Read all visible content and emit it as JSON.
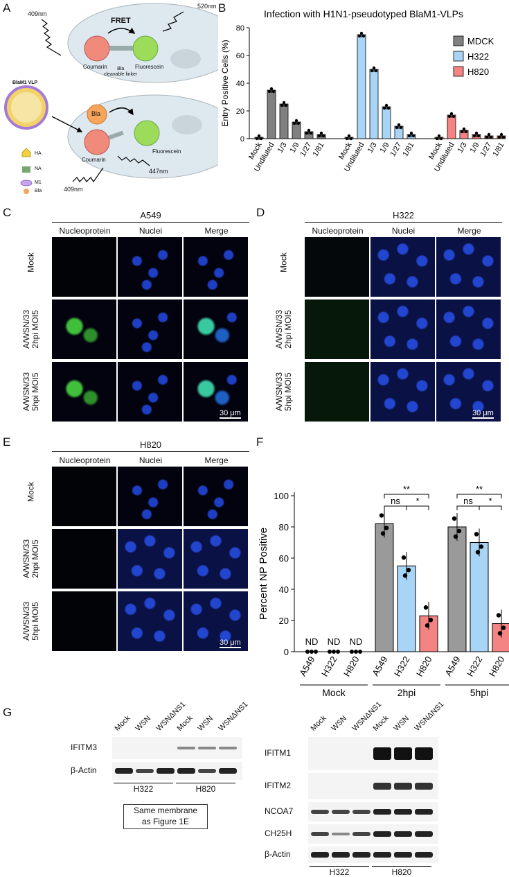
{
  "panel_labels": {
    "a": "A",
    "b": "B",
    "c": "C",
    "d": "D",
    "e": "E",
    "f": "F",
    "g": "G"
  },
  "panelA": {
    "wl_409_top": "409nm",
    "wl_520": "520nm",
    "fret": "FRET",
    "coumarin": "Coumarin",
    "fluorescein": "Fluorescein",
    "linker": "Bla\ncleavable linker",
    "vlp": "BlaM1 VLP",
    "ha": "HA",
    "na": "NA",
    "m1": "M1",
    "bla": "Bla",
    "bla_enzyme": "Bla",
    "coumarin2": "Coumarin",
    "fluorescein2": "Fluorescein",
    "wl_409_bottom": "409nm",
    "wl_447": "447nm",
    "colors": {
      "coumarin": "#f08a7a",
      "fluorescein": "#9ddc5a",
      "cell": "#dde8ef",
      "bla": "#f6a55a"
    }
  },
  "chartB": {
    "title": "Infection with H1N1-pseudotyped BlaM1-VLPs",
    "ylabel": "Entry Positive Cells (%)",
    "legend": [
      {
        "name": "MDCK",
        "color": "#808080"
      },
      {
        "name": "H322",
        "color": "#a8d4f5"
      },
      {
        "name": "H820",
        "color": "#f48383"
      }
    ],
    "yticks": [
      "0",
      "20",
      "40",
      "60",
      "80"
    ]
  },
  "chart_data": [
    {
      "type": "bar",
      "title": "Infection with H1N1-pseudotyped BlaM1-VLPs",
      "xlabel": "",
      "ylabel": "Entry Positive Cells (%)",
      "ylim": [
        0,
        80
      ],
      "categories": [
        "Mock",
        "Undiluted",
        "1/3",
        "1/9",
        "1/27",
        "1/81"
      ],
      "series": [
        {
          "name": "MDCK",
          "values": [
            1,
            35,
            25,
            12,
            5,
            3
          ]
        },
        {
          "name": "H322",
          "values": [
            1,
            75,
            50,
            23,
            9,
            3
          ]
        },
        {
          "name": "H820",
          "values": [
            1,
            17,
            6,
            3,
            2,
            2
          ]
        }
      ]
    },
    {
      "type": "bar",
      "title": "",
      "xlabel": "",
      "ylabel": "Percent NP Positive",
      "ylim": [
        0,
        100
      ],
      "groups": [
        "Mock",
        "2hpi",
        "5hpi"
      ],
      "categories": [
        "A549",
        "H322",
        "H820"
      ],
      "series": [
        {
          "group": "Mock",
          "values": [
            0,
            0,
            0
          ],
          "labels": [
            "ND",
            "ND",
            "ND"
          ]
        },
        {
          "group": "2hpi",
          "values": [
            82,
            55,
            23
          ]
        },
        {
          "group": "5hpi",
          "values": [
            80,
            70,
            18
          ]
        }
      ],
      "annotations": [
        {
          "group": "2hpi",
          "pairs": [
            [
              "A549",
              "H322",
              "ns"
            ],
            [
              "H322",
              "H820",
              "*"
            ],
            [
              "A549",
              "H820",
              "**"
            ]
          ]
        },
        {
          "group": "5hpi",
          "pairs": [
            [
              "A549",
              "H322",
              "ns"
            ],
            [
              "H322",
              "H820",
              "*"
            ],
            [
              "A549",
              "H820",
              "**"
            ]
          ]
        }
      ]
    }
  ],
  "chartF": {
    "ylabel": "Percent NP Positive",
    "yticks": [
      "0",
      "20",
      "40",
      "60",
      "80",
      "100"
    ],
    "nd": "ND",
    "colors": [
      "#9a9a9a",
      "#a8d4f5",
      "#f48383"
    ]
  },
  "micrographs": {
    "cols": [
      "Nucleoprotein",
      "Nuclei",
      "Merge"
    ],
    "rows": [
      "Mock",
      "A/WSN/33\n2hpi MOI5",
      "A/WSN/33\n5hpi MOI5"
    ],
    "c_title": "A549",
    "d_title": "H322",
    "e_title": "H820",
    "scale": "30 μm"
  },
  "westernLeft": {
    "lanes": [
      "Mock",
      "WSN",
      "WSNΔNS1",
      "Mock",
      "WSN",
      "WSNΔNS1"
    ],
    "proteins": [
      "IFITM3",
      "β-Actin"
    ],
    "groups": [
      "H322",
      "H820"
    ],
    "note": "Same membrane\nas Figure 1E"
  },
  "westernRight": {
    "lanes": [
      "Mock",
      "WSN",
      "WSNΔNS1",
      "Mock",
      "WSN",
      "WSNΔNS1"
    ],
    "proteins": [
      "IFITM1",
      "IFITM2",
      "NCOA7",
      "CH25H",
      "β-Actin"
    ],
    "groups": [
      "H322",
      "H820"
    ]
  }
}
